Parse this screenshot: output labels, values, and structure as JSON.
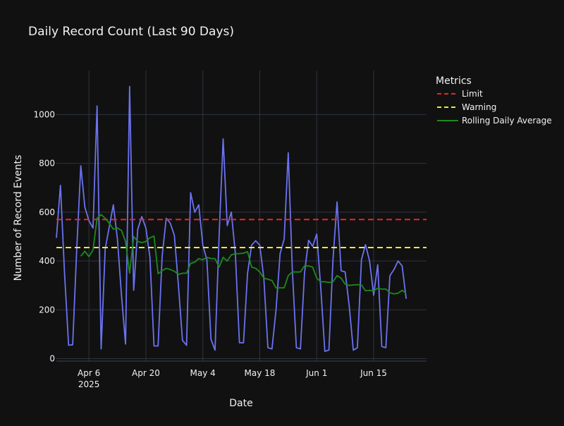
{
  "chart_data": {
    "type": "line",
    "title": "Daily Record Count (Last 90 Days)",
    "xlabel": "Date",
    "ylabel": "Number of Record Events",
    "legend": {
      "title": "Metrics",
      "placement": "right"
    },
    "x_range": [
      "2025-03-29",
      "2025-06-28"
    ],
    "ylim": [
      -10,
      1180
    ],
    "y_ticks": [
      0,
      200,
      400,
      600,
      800,
      1000
    ],
    "x_ticks": [
      {
        "date": "2025-04-06",
        "label": "Apr 6",
        "sublabel": "2025"
      },
      {
        "date": "2025-04-20",
        "label": "Apr 20",
        "sublabel": ""
      },
      {
        "date": "2025-05-04",
        "label": "May 4",
        "sublabel": ""
      },
      {
        "date": "2025-05-18",
        "label": "May 18",
        "sublabel": ""
      },
      {
        "date": "2025-06-01",
        "label": "Jun 1",
        "sublabel": ""
      },
      {
        "date": "2025-06-15",
        "label": "Jun 15",
        "sublabel": ""
      }
    ],
    "grid": true,
    "colors": {
      "background": "#111111",
      "grid": "#2d3440",
      "record": "#6b72f0",
      "limit": "#e8262a",
      "warning": "#ecea36",
      "rolling": "#1c8a1c",
      "text": "#f2f2f2"
    },
    "series": [
      {
        "key": "record",
        "name": "",
        "x_start": "2025-03-29",
        "values": [
          495,
          710,
          350,
          55,
          57,
          450,
          790,
          620,
          565,
          535,
          1035,
          40,
          450,
          540,
          630,
          490,
          260,
          60,
          1115,
          280,
          530,
          582,
          535,
          415,
          52,
          52,
          420,
          575,
          555,
          505,
          300,
          75,
          55,
          680,
          600,
          630,
          465,
          405,
          80,
          35,
          500,
          900,
          545,
          600,
          430,
          65,
          65,
          350,
          465,
          483,
          465,
          330,
          45,
          40,
          200,
          430,
          490,
          843,
          365,
          45,
          40,
          350,
          485,
          460,
          510,
          290,
          30,
          35,
          405,
          642,
          360,
          355,
          215,
          35,
          45,
          405,
          467,
          400,
          260,
          385,
          50,
          45,
          340,
          365,
          400,
          380,
          245
        ]
      },
      {
        "key": "rolling",
        "name": "Rolling Daily Average",
        "x_start": "2025-04-04",
        "values": [
          420,
          440,
          418,
          445,
          575,
          590,
          575,
          555,
          530,
          535,
          525,
          480,
          350,
          500,
          480,
          475,
          480,
          495,
          502,
          348,
          360,
          370,
          365,
          358,
          345,
          350,
          350,
          390,
          395,
          410,
          405,
          415,
          410,
          410,
          375,
          415,
          400,
          425,
          430,
          430,
          432,
          438,
          375,
          370,
          355,
          330,
          325,
          320,
          290,
          290,
          290,
          340,
          355,
          355,
          355,
          380,
          380,
          375,
          330,
          315,
          315,
          312,
          315,
          340,
          330,
          305,
          300,
          302,
          303,
          302,
          278,
          280,
          278,
          288,
          285,
          285,
          270,
          265,
          268,
          280,
          268
        ]
      },
      {
        "key": "limit",
        "name": "Limit",
        "value": 570
      },
      {
        "key": "warning",
        "name": "Warning",
        "value": 455
      }
    ]
  }
}
